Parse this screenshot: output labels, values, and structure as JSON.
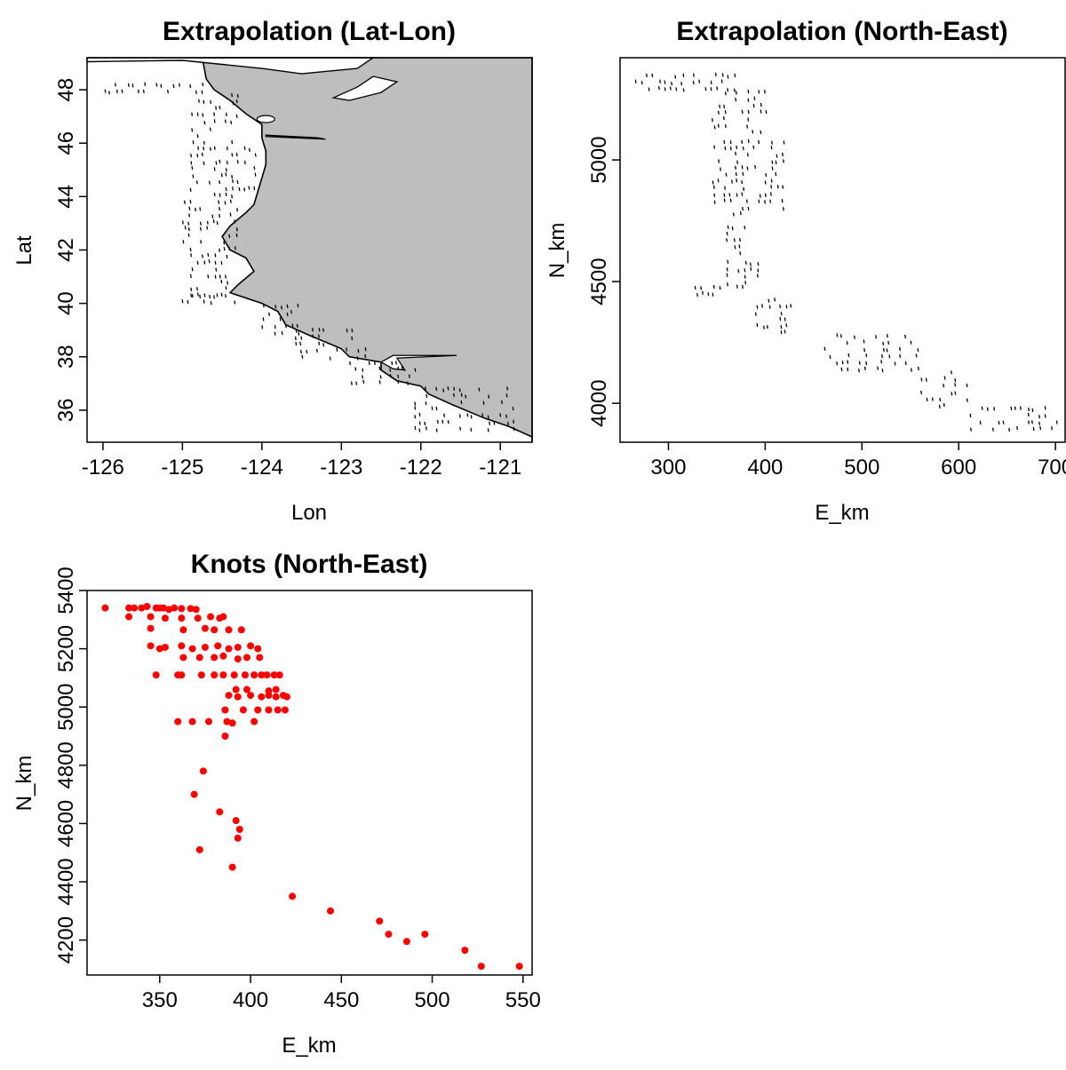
{
  "chart_data": [
    {
      "id": "latlon",
      "type": "scatter",
      "title": "Extrapolation (Lat-Lon)",
      "xlabel": "Lon",
      "ylabel": "Lat",
      "xlim": [
        -126.2,
        -120.6
      ],
      "ylim": [
        34.8,
        49.2
      ],
      "xticks": [
        -126,
        -125,
        -124,
        -123,
        -122,
        -121
      ],
      "yticks": [
        36,
        38,
        40,
        42,
        44,
        46,
        48
      ],
      "colors": {
        "points": "#000000",
        "land": "#bebebe",
        "coast": "#000000"
      },
      "point_glyph": "short vertical dash",
      "features": "grey land polygon east of a black coastline; survey extrapolation grid drawn as small black dashes along the coast",
      "point_bands": [
        {
          "lat": [
            47.9,
            48.4
          ],
          "lon_west": -126.0,
          "lon_east": -124.7
        },
        {
          "lat": [
            46.0,
            48.0
          ],
          "lon_west": -124.9,
          "lon_east": -124.3
        },
        {
          "lat": [
            44.0,
            46.0
          ],
          "lon_west": -124.9,
          "lon_east": -124.1
        },
        {
          "lat": [
            42.0,
            44.0
          ],
          "lon_west": -125.0,
          "lon_east": -124.3
        },
        {
          "lat": [
            40.4,
            42.0
          ],
          "lon_west": -124.9,
          "lon_east": -124.4
        },
        {
          "lat": [
            40.1,
            40.5
          ],
          "lon_west": -125.1,
          "lon_east": -124.3
        },
        {
          "lat": [
            39.0,
            40.1
          ],
          "lon_west": -124.0,
          "lon_east": -123.5
        },
        {
          "lat": [
            38.0,
            39.2
          ],
          "lon_west": -123.6,
          "lon_east": -122.7
        },
        {
          "lat": [
            37.0,
            38.0
          ],
          "lon_west": -122.9,
          "lon_east": -122.1
        },
        {
          "lat": [
            35.2,
            37.0
          ],
          "lon_west": -122.1,
          "lon_east": -120.8
        }
      ]
    },
    {
      "id": "northeast",
      "type": "scatter",
      "title": "Extrapolation (North-East)",
      "xlabel": "E_km",
      "ylabel": "N_km",
      "xlim": [
        250,
        710
      ],
      "ylim": [
        3840,
        5420
      ],
      "xticks": [
        300,
        400,
        500,
        600,
        700
      ],
      "yticks": [
        4000,
        4500,
        5000
      ],
      "colors": {
        "points": "#000000"
      },
      "point_glyph": "short vertical dash",
      "point_bands": [
        {
          "n": [
            5300,
            5370
          ],
          "e_west": 265,
          "e_east": 370
        },
        {
          "n": [
            5100,
            5300
          ],
          "e_west": 345,
          "e_east": 400
        },
        {
          "n": [
            4800,
            5100
          ],
          "e_west": 345,
          "e_east": 418
        },
        {
          "n": [
            4600,
            4800
          ],
          "e_west": 360,
          "e_east": 380
        },
        {
          "n": [
            4500,
            4600
          ],
          "e_west": 360,
          "e_east": 395
        },
        {
          "n": [
            4450,
            4500
          ],
          "e_west": 315,
          "e_east": 375
        },
        {
          "n": [
            4300,
            4450
          ],
          "e_west": 390,
          "e_east": 430
        },
        {
          "n": [
            4150,
            4300
          ],
          "e_west": 460,
          "e_east": 560
        },
        {
          "n": [
            4000,
            4150
          ],
          "e_west": 560,
          "e_east": 610
        },
        {
          "n": [
            3880,
            4000
          ],
          "e_west": 610,
          "e_east": 705
        }
      ]
    },
    {
      "id": "knots",
      "type": "scatter",
      "title": "Knots (North-East)",
      "xlabel": "E_km",
      "ylabel": "N_km",
      "xlim": [
        310,
        555
      ],
      "ylim": [
        4080,
        5400
      ],
      "xticks": [
        350,
        400,
        450,
        500,
        550
      ],
      "yticks": [
        4200,
        4400,
        4600,
        4800,
        5000,
        5200,
        5400
      ],
      "colors": {
        "points": "#ff0000"
      },
      "x": [
        320,
        333,
        336,
        340,
        343,
        348,
        350,
        352,
        355,
        358,
        362,
        367,
        370,
        333,
        345,
        353,
        362,
        371,
        378,
        383,
        385,
        345,
        363,
        375,
        380,
        388,
        395,
        345,
        350,
        353,
        362,
        368,
        375,
        382,
        388,
        393,
        400,
        404,
        363,
        372,
        380,
        385,
        393,
        398,
        405,
        348,
        360,
        362,
        373,
        380,
        385,
        391,
        397,
        402,
        406,
        409,
        413,
        416,
        392,
        398,
        410,
        414,
        388,
        393,
        400,
        406,
        410,
        414,
        418,
        420,
        386,
        396,
        404,
        410,
        415,
        419,
        360,
        368,
        377,
        387,
        390,
        402,
        386,
        374,
        369,
        383,
        392,
        393,
        394,
        372,
        390,
        423,
        444,
        471,
        476,
        486,
        496,
        518,
        527,
        548
      ],
      "y": [
        5340,
        5340,
        5340,
        5340,
        5345,
        5340,
        5340,
        5340,
        5335,
        5340,
        5338,
        5338,
        5335,
        5310,
        5310,
        5305,
        5305,
        5305,
        5310,
        5305,
        5310,
        5270,
        5265,
        5270,
        5265,
        5265,
        5265,
        5210,
        5200,
        5205,
        5210,
        5200,
        5205,
        5210,
        5200,
        5205,
        5210,
        5200,
        5170,
        5170,
        5170,
        5175,
        5165,
        5170,
        5170,
        5110,
        5110,
        5110,
        5110,
        5110,
        5110,
        5110,
        5110,
        5110,
        5110,
        5110,
        5110,
        5110,
        5060,
        5060,
        5055,
        5060,
        5040,
        5035,
        5040,
        5035,
        5040,
        5035,
        5040,
        5035,
        4990,
        4990,
        4990,
        4990,
        4990,
        4990,
        4950,
        4950,
        4950,
        4950,
        4945,
        4950,
        4900,
        4780,
        4700,
        4640,
        4610,
        4550,
        4580,
        4510,
        4450,
        4350,
        4300,
        4265,
        4220,
        4195,
        4220,
        4165,
        4110,
        4110
      ]
    }
  ]
}
